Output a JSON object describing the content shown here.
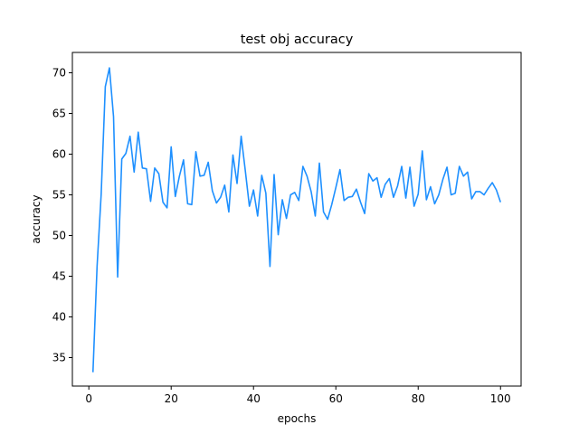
{
  "chart_data": {
    "type": "line",
    "title": "test obj accuracy",
    "xlabel": "epochs",
    "ylabel": "accuracy",
    "xlim": [
      -4,
      105
    ],
    "ylim": [
      31.5,
      72.5
    ],
    "xticks": [
      0,
      20,
      40,
      60,
      80,
      100
    ],
    "yticks": [
      35,
      40,
      45,
      50,
      55,
      60,
      65,
      70
    ],
    "grid": false,
    "series": [
      {
        "color": "#1e90ff",
        "x": [
          1,
          2,
          3,
          4,
          5,
          6,
          7,
          8,
          9,
          10,
          11,
          12,
          13,
          14,
          15,
          16,
          17,
          18,
          19,
          20,
          21,
          22,
          23,
          24,
          25,
          26,
          27,
          28,
          29,
          30,
          31,
          32,
          33,
          34,
          35,
          36,
          37,
          38,
          39,
          40,
          41,
          42,
          43,
          44,
          45,
          46,
          47,
          48,
          49,
          50,
          51,
          52,
          53,
          54,
          55,
          56,
          57,
          58,
          59,
          60,
          61,
          62,
          63,
          64,
          65,
          66,
          67,
          68,
          69,
          70,
          71,
          72,
          73,
          74,
          75,
          76,
          77,
          78,
          79,
          80,
          81,
          82,
          83,
          84,
          85,
          86,
          87,
          88,
          89,
          90,
          91,
          92,
          93,
          94,
          95,
          96,
          97,
          98,
          99,
          100
        ],
        "values": [
          33.2,
          46.2,
          55.1,
          68.3,
          70.6,
          64.6,
          44.9,
          59.4,
          60.1,
          62.2,
          57.8,
          62.7,
          58.3,
          58.2,
          54.2,
          58.3,
          57.6,
          54.1,
          53.4,
          60.9,
          54.8,
          57.3,
          59.3,
          53.9,
          53.8,
          60.3,
          57.3,
          57.4,
          59.0,
          55.5,
          54.0,
          54.7,
          56.2,
          52.9,
          59.9,
          56.4,
          62.2,
          58.0,
          53.6,
          55.6,
          52.4,
          57.4,
          55.2,
          46.2,
          57.5,
          50.1,
          54.4,
          52.1,
          55.0,
          55.3,
          54.3,
          58.5,
          57.3,
          55.4,
          52.4,
          58.9,
          52.9,
          52.0,
          53.8,
          55.9,
          58.1,
          54.3,
          54.7,
          54.8,
          55.7,
          54.1,
          52.7,
          57.6,
          56.7,
          57.1,
          54.7,
          56.3,
          57.0,
          54.7,
          56.1,
          58.5,
          54.6,
          58.4,
          53.6,
          55.1,
          60.4,
          54.4,
          56.0,
          53.9,
          55.0,
          56.9,
          58.4,
          55.0,
          55.2,
          58.5,
          57.3,
          57.8,
          54.5,
          55.4,
          55.4,
          55.0,
          55.8,
          56.5,
          55.6,
          54.1
        ]
      }
    ]
  }
}
